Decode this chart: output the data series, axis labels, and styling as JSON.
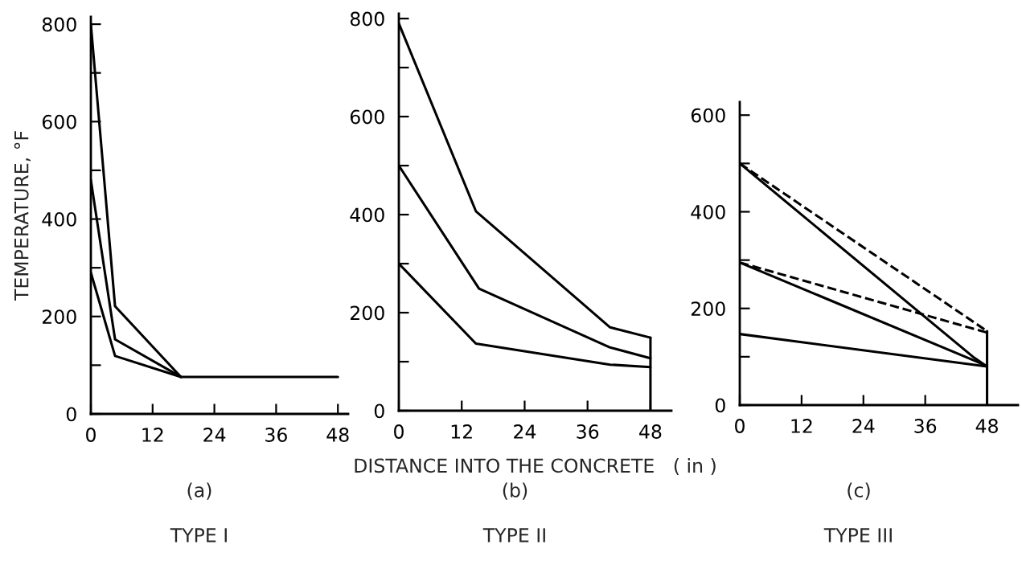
{
  "chart_data": [
    {
      "type": "line",
      "title": "(a)",
      "subtitle": "TYPE I",
      "ylabel": "TEMPERATURE, °F",
      "xlim": [
        0,
        50
      ],
      "ylim": [
        0,
        815
      ],
      "xticks": [
        0,
        12,
        24,
        36,
        48
      ],
      "yticks": [
        0,
        {
          "value": 100,
          "label": null
        },
        200,
        {
          "value": 300,
          "label": null
        },
        400,
        {
          "value": 500,
          "label": null
        },
        600,
        {
          "value": 700,
          "label": null
        },
        800
      ],
      "grid": false,
      "marker": "none",
      "series": [
        {
          "color": "#000000",
          "line_style": "solid",
          "x": [
            0,
            4.7,
            17.5,
            48
          ],
          "values": [
            800,
            221,
            76,
            76
          ]
        },
        {
          "color": "#000000",
          "line_style": "solid",
          "x": [
            0,
            4.7,
            17.5
          ],
          "values": [
            480,
            153,
            76
          ]
        },
        {
          "color": "#000000",
          "line_style": "solid",
          "x": [
            0,
            4.7,
            17.5
          ],
          "values": [
            290,
            119,
            76
          ]
        }
      ]
    },
    {
      "type": "line",
      "title": "(b)",
      "subtitle": "TYPE II",
      "xlabel": "DISTANCE INTO THE CONCRETE   ( in )",
      "xlim": [
        0,
        52
      ],
      "ylim": [
        0,
        810
      ],
      "xticks": [
        0,
        12,
        24,
        36,
        48
      ],
      "yticks": [
        0,
        {
          "value": 100,
          "label": null
        },
        200,
        {
          "value": 300,
          "label": null
        },
        400,
        {
          "value": 500,
          "label": null
        },
        600,
        {
          "value": 700,
          "label": null
        },
        800
      ],
      "grid": false,
      "marker": "none",
      "series": [
        {
          "color": "#000000",
          "line_style": "solid",
          "x": [
            0,
            14.7,
            40.3,
            48
          ],
          "values": [
            790,
            407,
            170,
            149
          ]
        },
        {
          "color": "#000000",
          "line_style": "solid",
          "x": [
            0,
            15.3,
            40.3,
            48
          ],
          "values": [
            500,
            249,
            129,
            107
          ]
        },
        {
          "color": "#000000",
          "line_style": "solid",
          "x": [
            0,
            14.7,
            40.3,
            48
          ],
          "values": [
            300,
            137,
            94,
            89
          ]
        },
        {
          "color": "#000000",
          "line_style": "solid",
          "x": [
            48,
            48
          ],
          "values": [
            0,
            149
          ]
        }
      ]
    },
    {
      "type": "line",
      "title": "(c)",
      "subtitle": "TYPE III",
      "xlim": [
        0,
        54
      ],
      "ylim": [
        0,
        627
      ],
      "xticks": [
        0,
        12,
        24,
        36,
        48
      ],
      "yticks": [
        0,
        {
          "value": 100,
          "label": null
        },
        200,
        {
          "value": 300,
          "label": null
        },
        400,
        {
          "value": 500,
          "label": null
        },
        600
      ],
      "grid": false,
      "marker": "none",
      "series": [
        {
          "color": "#000000",
          "line_style": "solid",
          "x": [
            0,
            45.5,
            48
          ],
          "values": [
            500,
            98,
            80
          ]
        },
        {
          "color": "#000000",
          "line_style": "solid",
          "x": [
            0,
            46,
            48
          ],
          "values": [
            295,
            90,
            80
          ]
        },
        {
          "color": "#000000",
          "line_style": "solid",
          "x": [
            0,
            48
          ],
          "values": [
            147,
            80
          ]
        },
        {
          "color": "#000000",
          "line_style": "dashed",
          "x": [
            0,
            48
          ],
          "values": [
            500,
            153
          ]
        },
        {
          "color": "#000000",
          "line_style": "dashed",
          "x": [
            0,
            48
          ],
          "values": [
            295,
            150
          ]
        },
        {
          "color": "#000000",
          "line_style": "solid",
          "x": [
            48,
            48
          ],
          "values": [
            0,
            153
          ]
        }
      ]
    }
  ]
}
